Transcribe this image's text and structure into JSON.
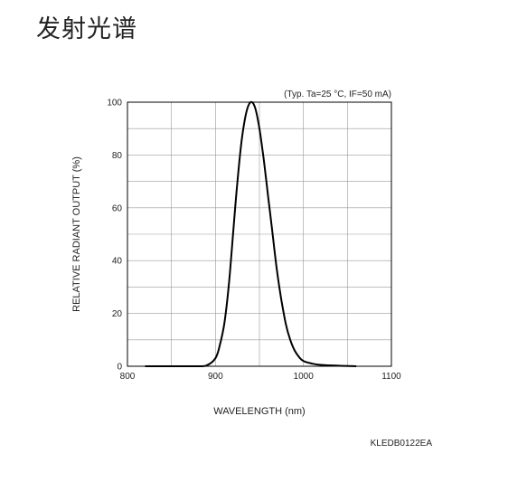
{
  "page": {
    "title": "发射光谱"
  },
  "chart_data": {
    "type": "line",
    "title": "",
    "conditions": "(Typ. Ta=25 °C, IF=50 mA)",
    "xlabel": "WAVELENGTH (nm)",
    "ylabel": "RELATIVE RADIANT OUTPUT (%)",
    "xlim": [
      800,
      1100
    ],
    "ylim": [
      0,
      100
    ],
    "xticks": [
      800,
      900,
      1000,
      1100
    ],
    "yticks": [
      0,
      20,
      40,
      60,
      80,
      100
    ],
    "grid": true,
    "line_color": "#000000",
    "series": [
      {
        "x": [
          820,
          860,
          880,
          890,
          900,
          905,
          910,
          915,
          920,
          925,
          930,
          935,
          940,
          945,
          950,
          955,
          960,
          965,
          970,
          975,
          980,
          985,
          990,
          995,
          1000,
          1010,
          1020,
          1040,
          1060
        ],
        "y": [
          0,
          0,
          0,
          0.3,
          3,
          8,
          16,
          30,
          50,
          70,
          86,
          96,
          100,
          98,
          90,
          78,
          64,
          50,
          36,
          25,
          16,
          10,
          6,
          3.5,
          2,
          1,
          0.5,
          0.2,
          0
        ]
      }
    ],
    "figure_code": "KLEDB0122EA"
  }
}
